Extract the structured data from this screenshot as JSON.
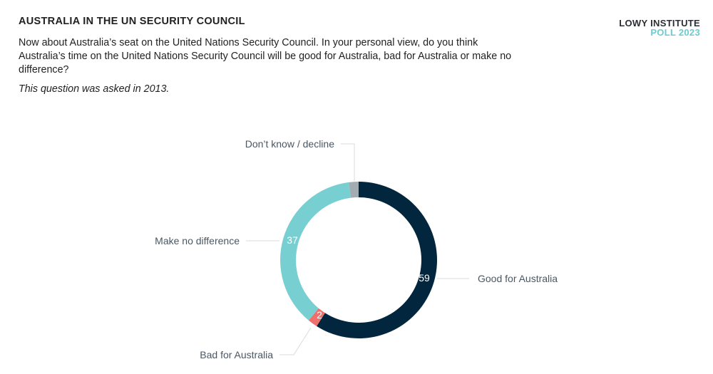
{
  "header": {
    "title": "AUSTRALIA IN THE UN SECURITY COUNCIL",
    "question": "Now about Australia’s seat on the United Nations Security Council. In your personal view, do you think Australia’s time on the United Nations Security Council will be good for Australia, bad for Australia or make no difference?",
    "note": "This question was asked in 2013."
  },
  "brand": {
    "line1": "LOWY INSTITUTE",
    "line2": "POLL 2023"
  },
  "chart_data": {
    "type": "pie",
    "subtype": "donut",
    "title": "AUSTRALIA IN THE UN SECURITY COUNCIL",
    "categories": [
      "Good for Australia",
      "Bad for Australia",
      "Make no difference",
      "Don’t know / decline"
    ],
    "values": [
      59,
      2,
      37,
      2
    ],
    "colors": [
      "#02263d",
      "#ef6f6c",
      "#78cfd2",
      "#a3acb2"
    ],
    "data_labels": [
      "59",
      "2",
      "37",
      ""
    ],
    "start_angle": "12 o'clock, clockwise"
  }
}
